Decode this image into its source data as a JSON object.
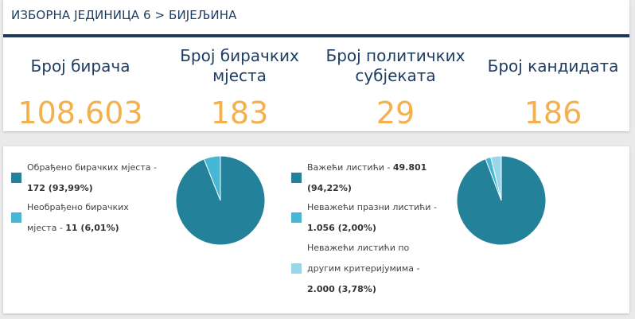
{
  "header": {
    "breadcrumb": "ИЗБОРНА ЈЕДИНИЦА 6 > БИЈЕЉИНА"
  },
  "stats": [
    {
      "label_line1": "Број бирача",
      "label_line2": "",
      "value": "108.603"
    },
    {
      "label_line1": "Број бирачких",
      "label_line2": "мјеста",
      "value": "183"
    },
    {
      "label_line1": "Број политичких",
      "label_line2": "субјеката",
      "value": "29"
    },
    {
      "label_line1": "Број кандидата",
      "label_line2": "",
      "value": "186"
    }
  ],
  "colors": {
    "accent_orange": "#f3b04e",
    "navy": "#203a5c",
    "pie_dark": "#23829a",
    "pie_light": "#46b8d6",
    "pie_pale": "#98d7ea"
  },
  "polling_stations": {
    "legend": [
      {
        "line1": "Обрађено бирачких мјеста -",
        "line2": "172 (93,99%)",
        "color": "#23829a"
      },
      {
        "line1": "Необрађено бирачких",
        "line2": "мјеста - ",
        "line2_bold": "11 (6,01%)",
        "color": "#46b8d6"
      }
    ],
    "chart_data": {
      "type": "pie",
      "categories": [
        "Обрађено бирачких мјеста",
        "Необрађено бирачких мјеста"
      ],
      "values": [
        93.99,
        6.01
      ],
      "colors": [
        "#23829a",
        "#46b8d6"
      ]
    }
  },
  "ballots": {
    "legend": [
      {
        "line1": "Важећи листићи - ",
        "line1_bold": "49.801",
        "line2": "(94,22%)",
        "color": "#23829a"
      },
      {
        "line1": "Неважећи празни листићи -",
        "line2": "1.056 (2,00%)",
        "color": "#46b8d6"
      },
      {
        "line1": "Неважећи листићи по",
        "line2": "другим критеријумима -",
        "line3": "2.000 (3,78%)",
        "color": "#98d7ea"
      }
    ],
    "chart_data": {
      "type": "pie",
      "categories": [
        "Важећи листићи",
        "Неважећи празни листићи",
        "Неважећи листићи по другим критеријумима"
      ],
      "values": [
        94.22,
        2.0,
        3.78
      ],
      "colors": [
        "#23829a",
        "#46b8d6",
        "#98d7ea"
      ]
    }
  }
}
